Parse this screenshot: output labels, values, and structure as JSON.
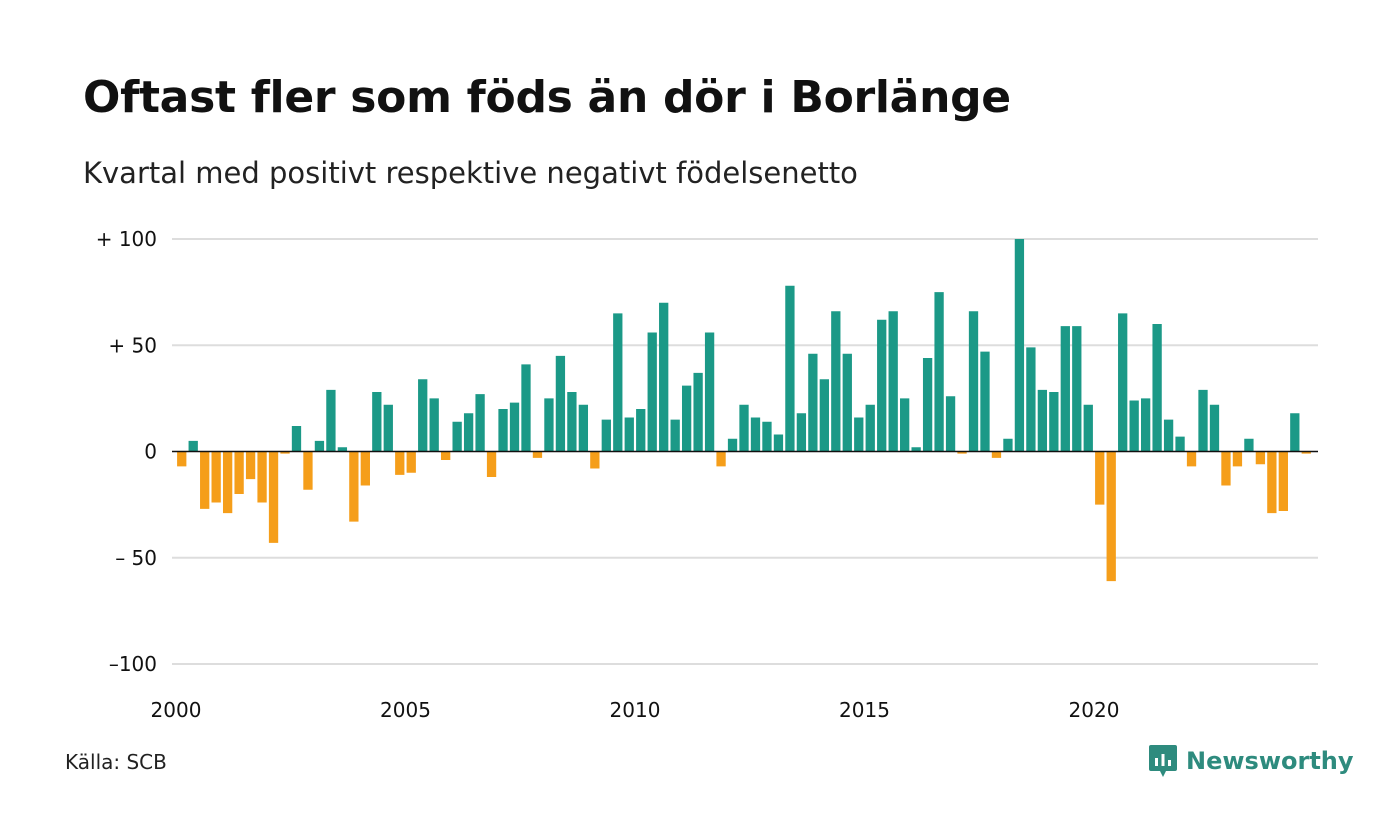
{
  "header": {
    "title": "Oftast fler som föds än dör i Borlänge",
    "subtitle": "Kvartal med positivt respektive negativt födelsenetto"
  },
  "footer": {
    "source": "Källa: SCB",
    "brand": "Newsworthy",
    "brand_icon": "newsworthy-logo-icon"
  },
  "colors": {
    "positive": "#1b9987",
    "negative": "#f59e1a",
    "grid": "#dddddd",
    "brand": "#2e8b7e"
  },
  "chart_data": {
    "type": "bar",
    "title": "Oftast fler som föds än dör i Borlänge",
    "subtitle": "Kvartal med positivt respektive negativt födelsenetto",
    "xlabel": "",
    "ylabel": "",
    "ylim": [
      -100,
      100
    ],
    "y_ticks": [
      {
        "value": 100,
        "label": "+ 100"
      },
      {
        "value": 50,
        "label": "+  50"
      },
      {
        "value": 0,
        "label": "0"
      },
      {
        "value": -50,
        "label": "– 50"
      },
      {
        "value": -100,
        "label": "–100"
      }
    ],
    "x_ticks": [
      "2000",
      "2005",
      "2010",
      "2015",
      "2020"
    ],
    "grid": true,
    "start_year": 2000,
    "quarters_per_year": 4,
    "values": [
      -7,
      5,
      -27,
      -24,
      -29,
      -20,
      -13,
      -24,
      -43,
      -1,
      12,
      -18,
      5,
      29,
      2,
      -33,
      -16,
      28,
      22,
      -11,
      -10,
      34,
      25,
      -4,
      14,
      18,
      27,
      -12,
      20,
      23,
      41,
      -3,
      25,
      45,
      28,
      22,
      -8,
      15,
      65,
      16,
      20,
      56,
      70,
      15,
      31,
      37,
      56,
      -7,
      6,
      22,
      16,
      14,
      8,
      78,
      18,
      46,
      34,
      66,
      46,
      16,
      22,
      62,
      66,
      25,
      2,
      44,
      75,
      26,
      -1,
      66,
      47,
      -3,
      6,
      100,
      49,
      29,
      28,
      59,
      59,
      22,
      -25,
      -61,
      65,
      24,
      25,
      60,
      15,
      7,
      -7,
      29,
      22,
      -16,
      -7,
      6,
      -6,
      -29,
      -28,
      18,
      -1
    ]
  }
}
